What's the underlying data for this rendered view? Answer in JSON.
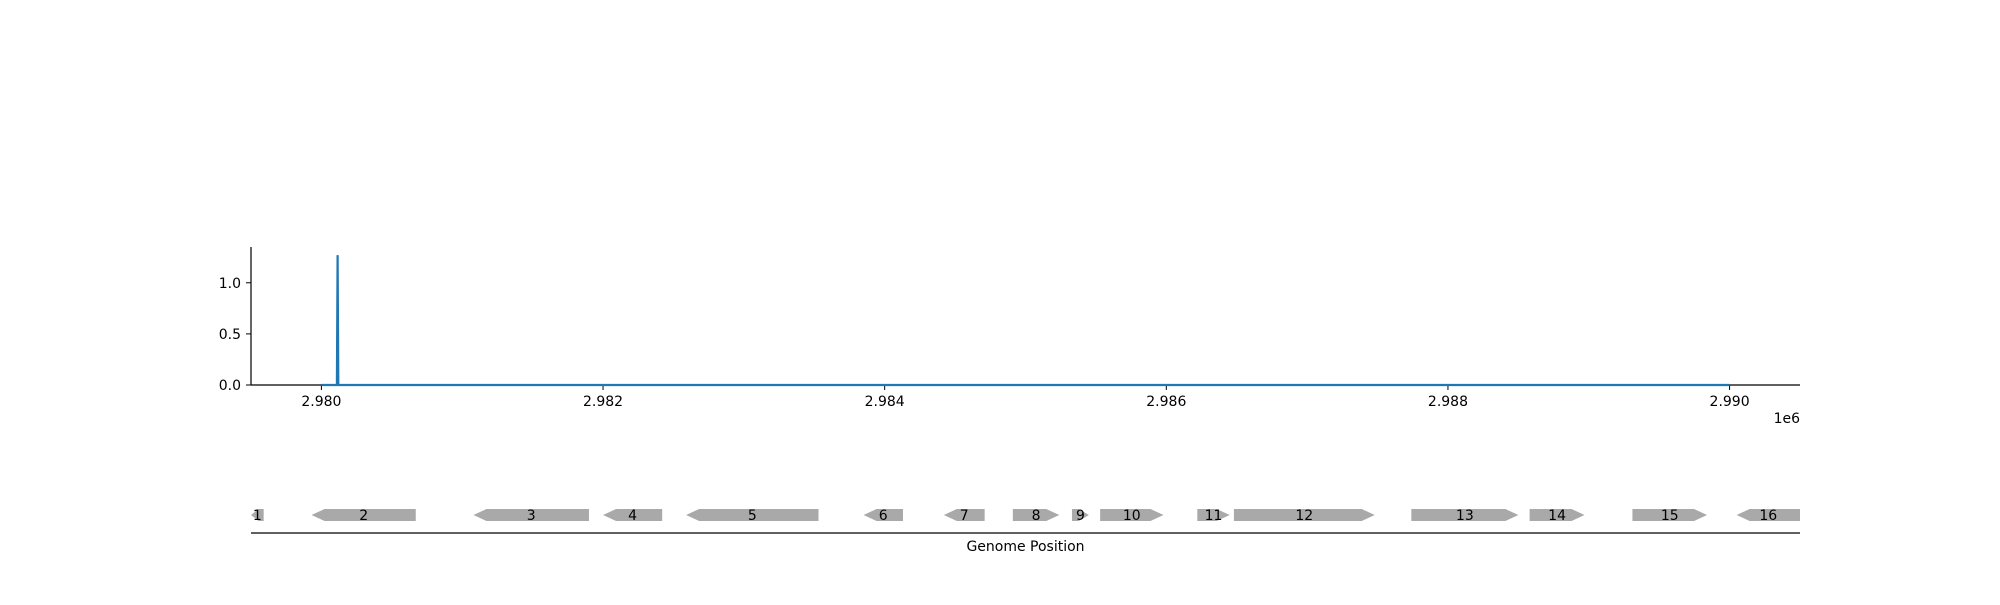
{
  "chart_data": [
    {
      "type": "line",
      "title": "",
      "xlabel": "",
      "ylabel": "",
      "xlim": [
        2979500,
        2990500
      ],
      "ylim": [
        0.0,
        1.35
      ],
      "x_ticks": [
        2980000,
        2982000,
        2984000,
        2986000,
        2988000,
        2990000
      ],
      "x_tick_labels": [
        "2.980",
        "2.982",
        "2.984",
        "2.986",
        "2.988",
        "2.990"
      ],
      "x_offset_label": "1e6",
      "y_ticks": [
        0.0,
        0.5,
        1.0
      ],
      "y_tick_labels": [
        "0.0",
        "0.5",
        "1.0"
      ],
      "grid": false,
      "color": "#1f77b4",
      "series": [
        {
          "x": [
            2980000,
            2980110,
            2980115,
            2980120,
            2990000
          ],
          "y": [
            0.0,
            0.0,
            1.27,
            0.0,
            0.0
          ]
        }
      ]
    },
    {
      "type": "gene_track",
      "xlabel": "Genome Position",
      "xlim": [
        2979500,
        2990500
      ],
      "feature_color": "#a9a9a9",
      "genes": [
        {
          "label": "1",
          "start": 2979500,
          "end": 2979590,
          "strand": -1
        },
        {
          "label": "2",
          "start": 2979930,
          "end": 2980670,
          "strand": -1
        },
        {
          "label": "3",
          "start": 2981080,
          "end": 2981900,
          "strand": -1
        },
        {
          "label": "4",
          "start": 2982000,
          "end": 2982420,
          "strand": -1
        },
        {
          "label": "5",
          "start": 2982590,
          "end": 2983530,
          "strand": -1
        },
        {
          "label": "6",
          "start": 2983850,
          "end": 2984130,
          "strand": -1
        },
        {
          "label": "7",
          "start": 2984420,
          "end": 2984710,
          "strand": -1
        },
        {
          "label": "8",
          "start": 2984910,
          "end": 2985240,
          "strand": 1
        },
        {
          "label": "9",
          "start": 2985330,
          "end": 2985450,
          "strand": 1
        },
        {
          "label": "10",
          "start": 2985530,
          "end": 2985980,
          "strand": 1
        },
        {
          "label": "11",
          "start": 2986220,
          "end": 2986450,
          "strand": 1
        },
        {
          "label": "12",
          "start": 2986480,
          "end": 2987480,
          "strand": 1
        },
        {
          "label": "13",
          "start": 2987740,
          "end": 2988500,
          "strand": 1
        },
        {
          "label": "14",
          "start": 2988580,
          "end": 2988970,
          "strand": 1
        },
        {
          "label": "15",
          "start": 2989310,
          "end": 2989840,
          "strand": 1
        },
        {
          "label": "16",
          "start": 2990050,
          "end": 2990500,
          "strand": -1
        }
      ]
    }
  ]
}
